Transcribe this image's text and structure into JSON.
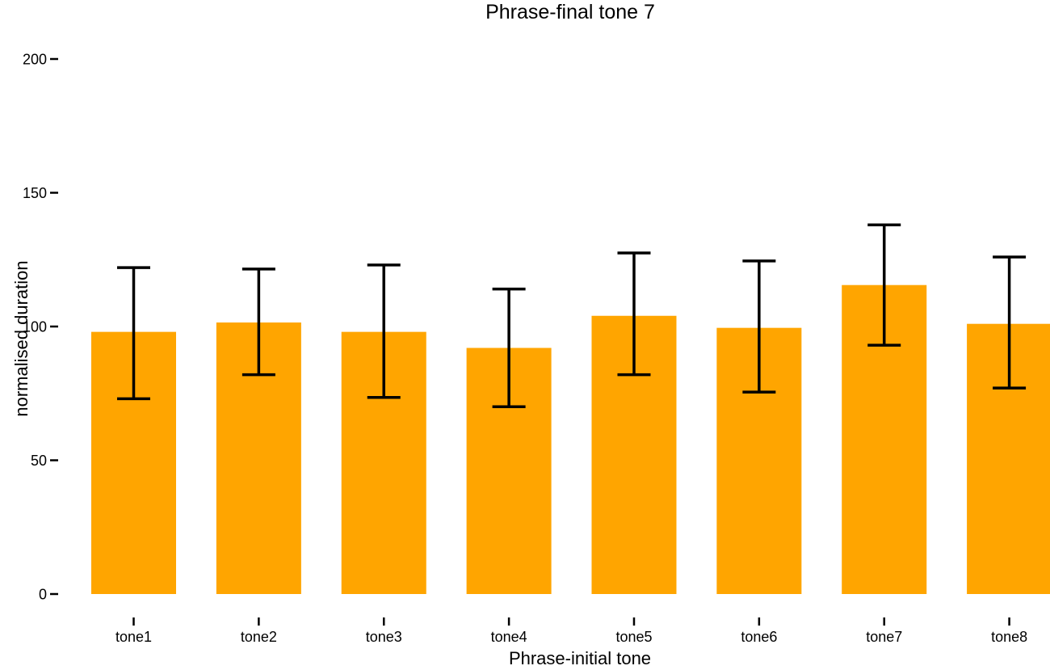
{
  "page": {
    "background_color": "#ffffff",
    "text_color": "#000000"
  },
  "chart_data": {
    "type": "bar",
    "title": "Phrase-final tone 7",
    "xlabel": "Phrase-initial tone",
    "ylabel": "normalised duration",
    "categories": [
      "tone1",
      "tone2",
      "tone3",
      "tone4",
      "tone5",
      "tone6",
      "tone7",
      "tone8"
    ],
    "values": [
      98,
      101.5,
      98,
      92,
      104,
      99.5,
      115.5,
      101
    ],
    "error_upper": [
      122,
      121.5,
      123,
      114,
      127.5,
      124.5,
      138,
      126
    ],
    "error_lower": [
      73,
      82,
      73.5,
      70,
      82,
      75.5,
      93,
      77
    ],
    "yticks": [
      0,
      50,
      100,
      150,
      200
    ],
    "ytick_labels": [
      "0",
      "50",
      "100",
      "150",
      "200"
    ],
    "ylim": [
      0,
      200
    ],
    "bar_color": "#FFA500",
    "error_color": "#000000",
    "tick_color": "#000000",
    "grid": false,
    "legend": false
  }
}
